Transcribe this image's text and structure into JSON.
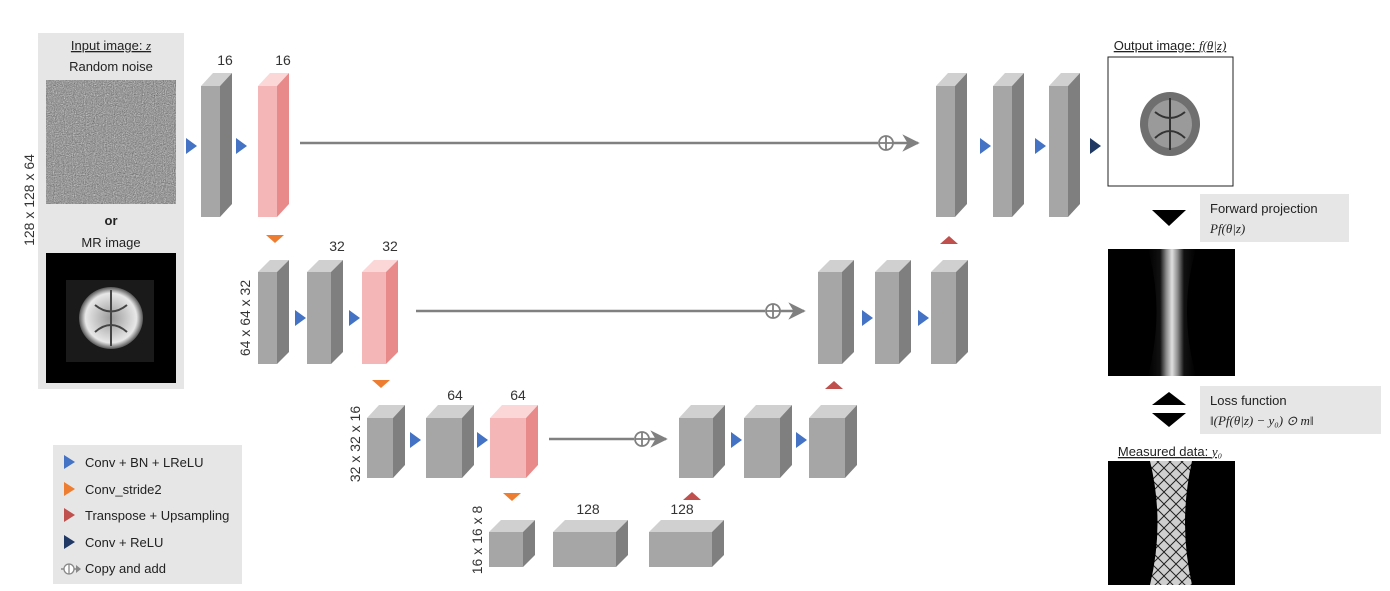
{
  "input_panel": {
    "title_text": "Input image: ",
    "title_var": "z",
    "noise_label": "Random noise",
    "or_label": "or",
    "mr_label": "MR image",
    "dim_label": "128 x 128 x 64"
  },
  "levels": {
    "l1": {
      "dim": "128 x 128 x 64",
      "ch_a": "16",
      "ch_b": "16"
    },
    "l2": {
      "dim": "64 x 64 x 32",
      "ch_a": "32",
      "ch_b": "32"
    },
    "l3": {
      "dim": "32 x 32 x 16",
      "ch_a": "64",
      "ch_b": "64"
    },
    "l4": {
      "dim": "16 x 16 x 8",
      "ch_a": "128",
      "ch_b": "128"
    }
  },
  "output": {
    "title_text": "Output image: ",
    "title_math": "f(θ|z)"
  },
  "forward_projection": {
    "label": "Forward projection",
    "math": "Pf(θ|z)"
  },
  "loss_function": {
    "label": "Loss function",
    "math": "‖(Pf(θ|z) − y₀) ⊙ m‖"
  },
  "measured": {
    "title_text": "Measured data: ",
    "title_math": "y₀"
  },
  "legend": {
    "items": [
      {
        "label": "Conv + BN + LReLU",
        "color": "#4472c4",
        "shape": "triangle-right"
      },
      {
        "label": "Conv_stride2",
        "color": "#ed7d31",
        "shape": "triangle-down"
      },
      {
        "label": "Transpose + Upsampling",
        "color": "#c0504d",
        "shape": "triangle-up"
      },
      {
        "label": "Conv + ReLU",
        "color": "#1f3864",
        "shape": "triangle-right"
      },
      {
        "label": "Copy and add",
        "color": "#888888",
        "shape": "circle-plus-arrow"
      }
    ]
  },
  "colors": {
    "block_front": "#a6a6a6",
    "block_side": "#7f7f7f",
    "block_top": "#d0d0d0",
    "pink_front": "#f4b6b6",
    "pink_side": "#e88a8a",
    "pink_top": "#fbd7d7",
    "panel_bg": "#e6e6e6",
    "arrow_gray": "#808080"
  }
}
